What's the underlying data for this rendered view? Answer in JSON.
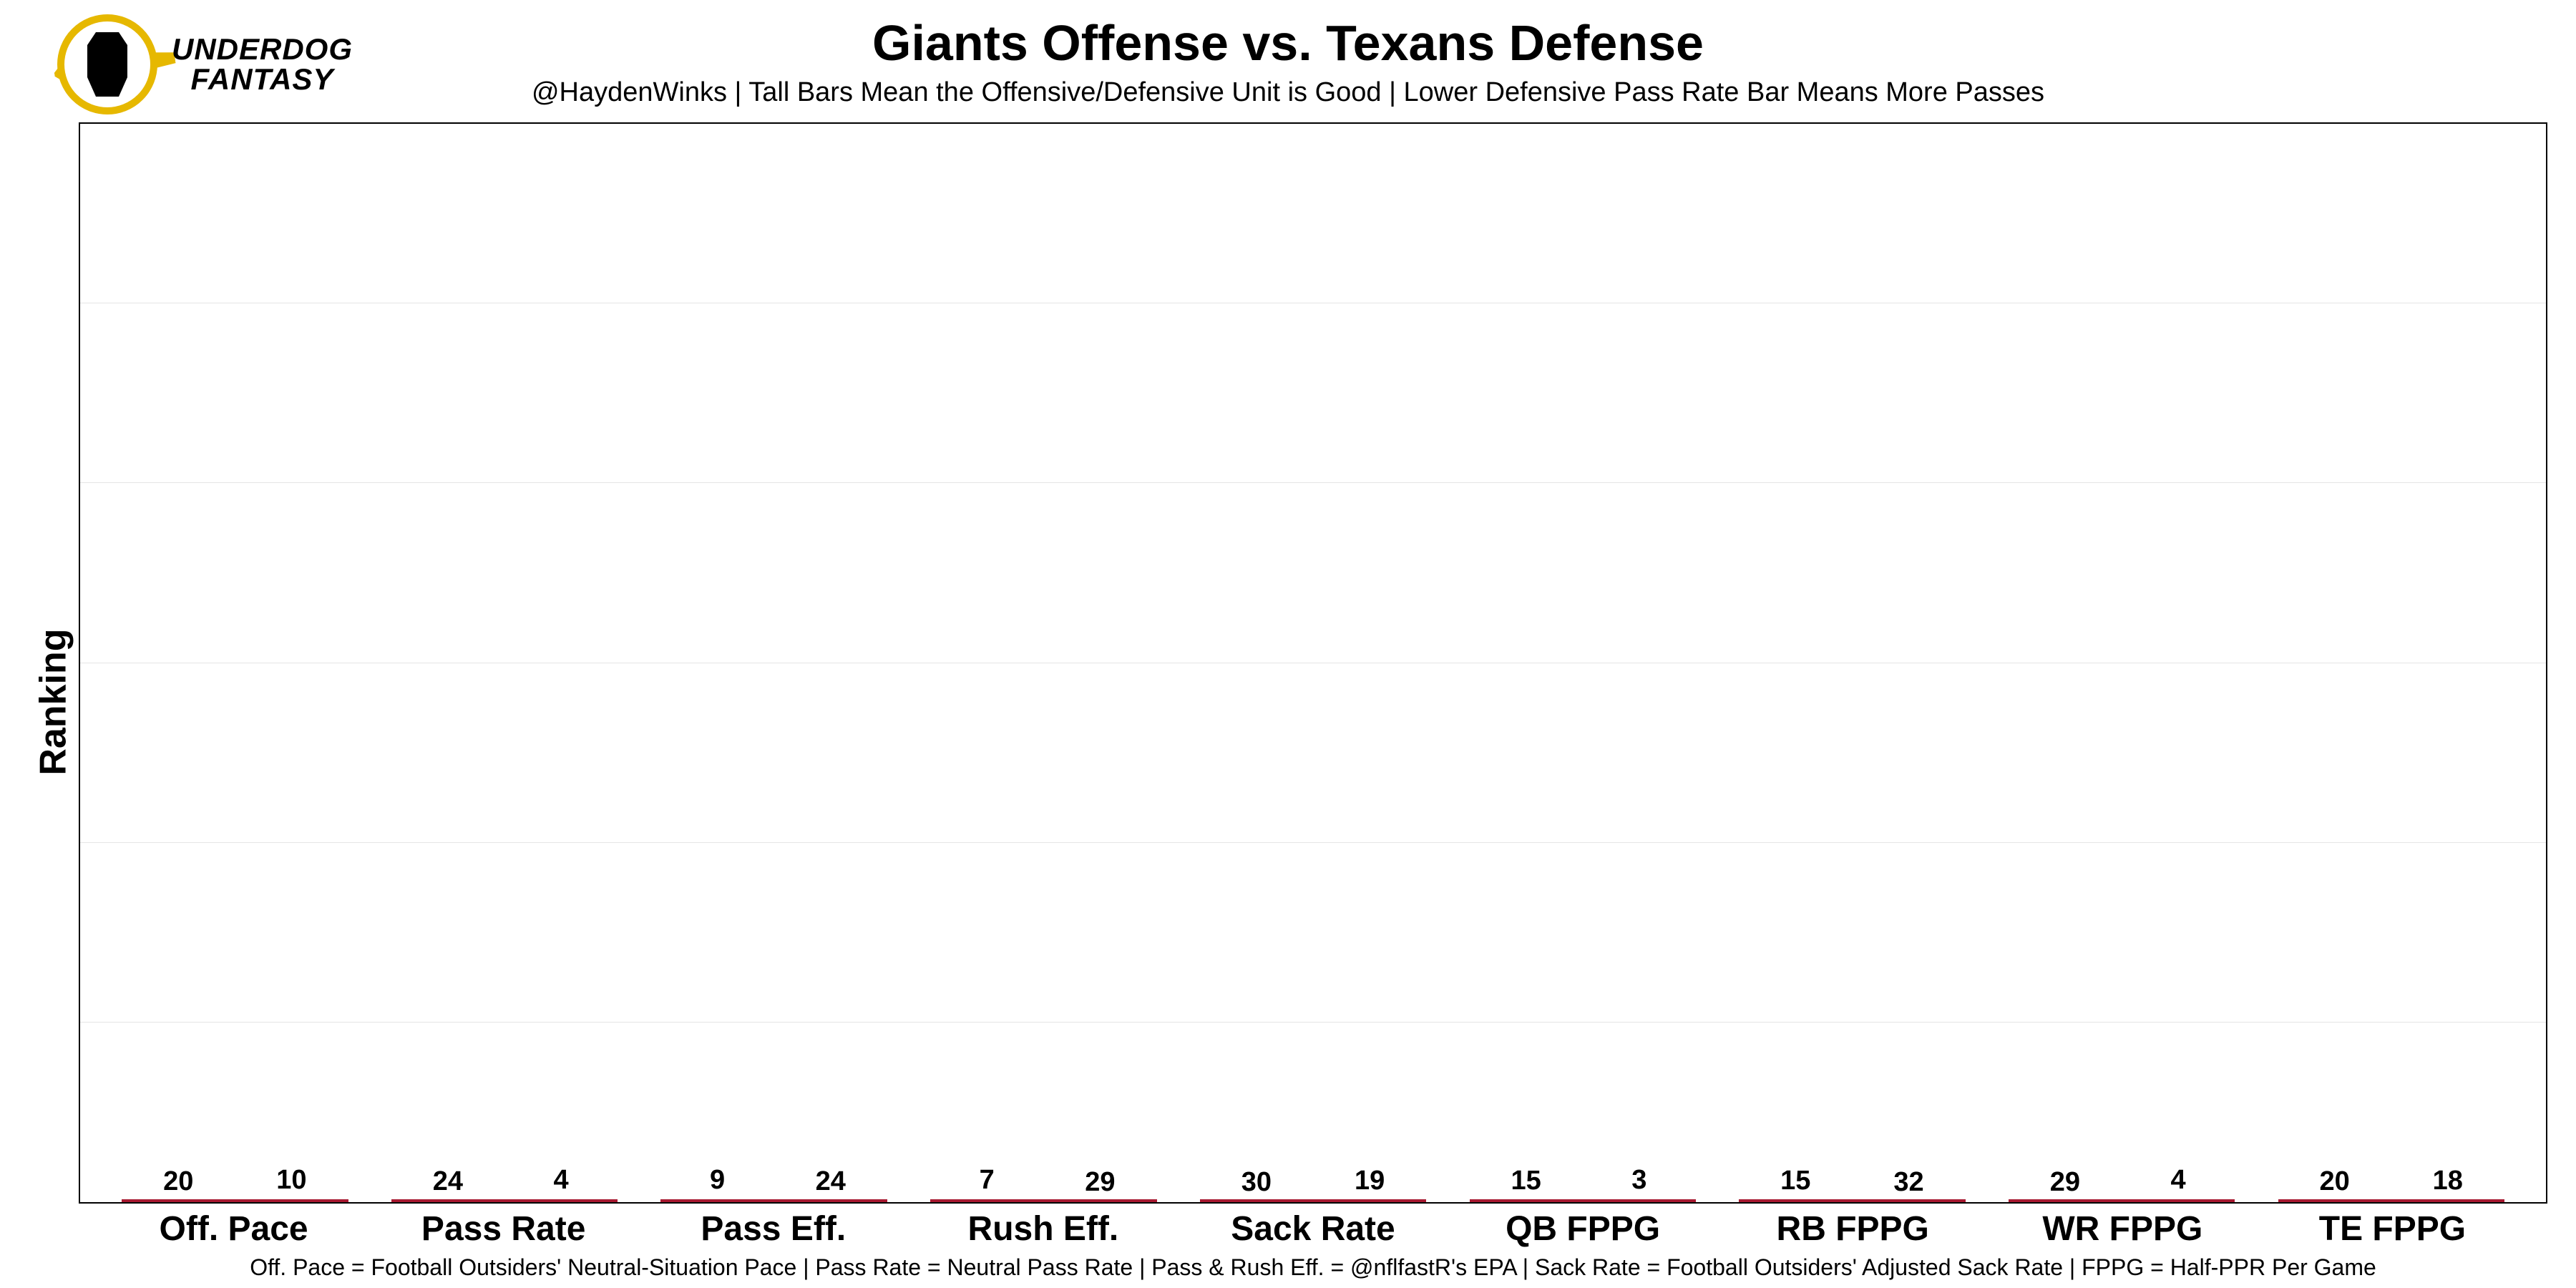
{
  "logo": {
    "line1": "UNDERDOG",
    "line2": "FANTASY",
    "ring_color": "#e6b800",
    "dog_color": "#000000"
  },
  "title": "Giants Offense vs. Texans Defense",
  "subtitle": "@HaydenWinks | Tall Bars Mean the Offensive/Defensive Unit is Good | Lower Defensive Pass Rate Bar Means More Passes",
  "ylabel": "Ranking",
  "footnote": "Off. Pace = Football Outsiders' Neutral-Situation Pace | Pass Rate = Neutral Pass Rate | Pass & Rush Eff. = @nflfastR's EPA | Sack Rate = Football Outsiders' Adjusted Sack Rate | FPPG = Half-PPR Per Game",
  "chart": {
    "type": "grouped-bar",
    "rank_min": 1,
    "rank_max": 32,
    "gridline_steps": [
      0.1667,
      0.3333,
      0.5,
      0.6667,
      0.8333
    ],
    "categories": [
      "Off. Pace",
      "Pass Rate",
      "Pass Eff.",
      "Rush Eff.",
      "Sack Rate",
      "QB FPPG",
      "RB FPPG",
      "WR FPPG",
      "TE FPPG"
    ],
    "series": [
      {
        "name": "offense",
        "fill_color": "#14214b",
        "border_color": "#a71930",
        "values": [
          20,
          24,
          9,
          7,
          30,
          15,
          15,
          29,
          20
        ]
      },
      {
        "name": "defense",
        "fill_color": "#03202f",
        "border_color": "#a71930",
        "values": [
          10,
          4,
          24,
          29,
          19,
          3,
          32,
          4,
          18
        ]
      }
    ],
    "label_fontsize": 38,
    "label_fontweight": 700,
    "xaxis_fontsize": 48,
    "xaxis_fontweight": 700,
    "border_color": "#000000",
    "grid_color": "#e5e5e5",
    "background_color": "#ffffff",
    "bar_width_ratio": 0.42
  }
}
